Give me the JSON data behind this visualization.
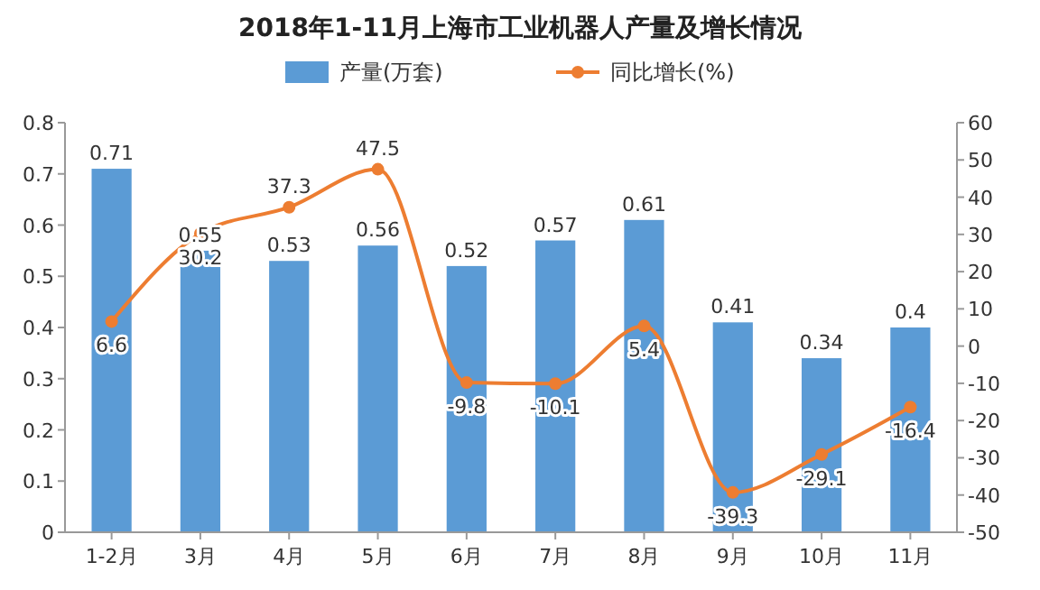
{
  "chart_data": {
    "type": "bar",
    "title": "2018年1-11月上海市工业机器人产量及增长情况",
    "categories": [
      "1-2月",
      "3月",
      "4月",
      "5月",
      "6月",
      "7月",
      "8月",
      "9月",
      "10月",
      "11月"
    ],
    "series": [
      {
        "name": "产量(万套)",
        "color": "#5b9bd5",
        "values": [
          0.71,
          0.55,
          0.53,
          0.56,
          0.52,
          0.57,
          0.61,
          0.41,
          0.34,
          0.4
        ]
      },
      {
        "name": "同比增长(%)",
        "type": "line",
        "axis": "y2",
        "color": "#ed7d31",
        "values": [
          6.6,
          30.2,
          37.3,
          47.5,
          -9.8,
          -10.1,
          5.4,
          -39.3,
          -29.1,
          -16.4
        ]
      }
    ],
    "ylim": [
      0,
      0.8
    ],
    "yticks": [
      0,
      0.1,
      0.2,
      0.3,
      0.4,
      0.5,
      0.6,
      0.7,
      0.8
    ],
    "y2lim": [
      -50,
      60
    ],
    "y2ticks": [
      -50,
      -40,
      -30,
      -20,
      -10,
      0,
      10,
      20,
      30,
      40,
      50,
      60
    ],
    "data_labels": true,
    "legend": "top",
    "marker": "circle",
    "grid": false
  }
}
